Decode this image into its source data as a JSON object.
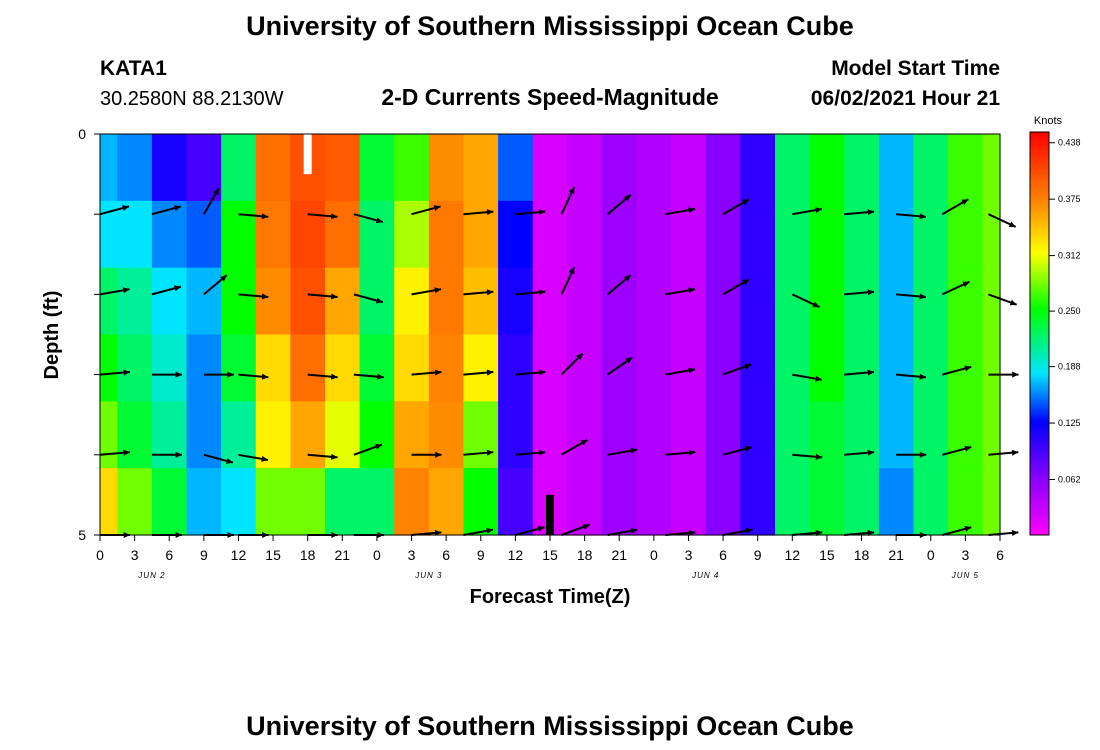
{
  "header": {
    "title": "University of Southern Mississippi Ocean Cube",
    "footer_title": "University of Southern Mississippi Ocean Cube",
    "station": "KATA1",
    "location": "30.2580N  88.2130W",
    "subtitle": "2-D Currents Speed-Magnitude",
    "model_start_label": "Model Start Time",
    "model_start_value": "06/02/2021 Hour 21"
  },
  "chart_data": {
    "type": "heatmap",
    "title": "2-D Currents Speed-Magnitude",
    "xlabel": "Forecast Time(Z)",
    "ylabel": "Depth (ft)",
    "x_tick_labels": [
      "0",
      "3",
      "6",
      "9",
      "12",
      "15",
      "18",
      "21",
      "0",
      "3",
      "6",
      "9",
      "12",
      "15",
      "18",
      "21",
      "0",
      "3",
      "6",
      "9",
      "12",
      "15",
      "18",
      "21",
      "0",
      "3",
      "6"
    ],
    "date_labels": [
      {
        "label": "JUN 2",
        "hour": 4.5
      },
      {
        "label": "JUN 3",
        "hour": 28.5
      },
      {
        "label": "JUN 4",
        "hour": 52.5
      },
      {
        "label": "JUN 5",
        "hour": 75
      }
    ],
    "xlim_hours": [
      0,
      78
    ],
    "ylim_ft": [
      0,
      5
    ],
    "y_tick_labels": [
      "0",
      "",
      "",
      "",
      "",
      "5"
    ],
    "depth_rows": 5,
    "colorbar": {
      "unit": "Knots",
      "min": 0.0,
      "max": 0.45,
      "ticks": [
        "0.438",
        "0.375",
        "0.312",
        "0.250",
        "0.188",
        "0.125",
        "0.062"
      ],
      "tick_values": [
        0.438,
        0.375,
        0.312,
        0.25,
        0.188,
        0.125,
        0.062
      ]
    },
    "speed_columns": [
      {
        "hour": 0,
        "speeds": [
          0.16,
          0.17,
          0.2,
          0.22,
          0.24,
          0.28
        ]
      },
      {
        "hour": 3,
        "speeds": [
          0.15,
          0.17,
          0.19,
          0.2,
          0.21,
          0.24
        ]
      },
      {
        "hour": 6,
        "speeds": [
          0.11,
          0.15,
          0.17,
          0.18,
          0.19,
          0.21
        ]
      },
      {
        "hour": 9,
        "speeds": [
          0.09,
          0.14,
          0.16,
          0.15,
          0.15,
          0.16
        ]
      },
      {
        "hour": 12,
        "speeds": [
          0.2,
          0.22,
          0.22,
          0.21,
          0.19,
          0.17
        ]
      },
      {
        "hour": 15,
        "speeds": [
          0.34,
          0.33,
          0.31,
          0.28,
          0.27,
          0.24
        ]
      },
      {
        "hour": 18,
        "speeds": [
          0.37,
          0.38,
          0.37,
          0.34,
          0.3,
          0.24
        ]
      },
      {
        "hour": 21,
        "speeds": [
          0.36,
          0.34,
          0.3,
          0.28,
          0.26,
          0.2
        ]
      },
      {
        "hour": 24,
        "speeds": [
          0.21,
          0.2,
          0.2,
          0.21,
          0.22,
          0.2
        ]
      },
      {
        "hour": 27,
        "speeds": [
          0.23,
          0.25,
          0.27,
          0.28,
          0.3,
          0.32
        ]
      },
      {
        "hour": 30,
        "speeds": [
          0.31,
          0.33,
          0.33,
          0.32,
          0.31,
          0.3
        ]
      },
      {
        "hour": 33,
        "speeds": [
          0.3,
          0.3,
          0.29,
          0.27,
          0.24,
          0.22
        ]
      },
      {
        "hour": 36,
        "speeds": [
          0.14,
          0.12,
          0.11,
          0.1,
          0.1,
          0.09
        ]
      },
      {
        "hour": 39,
        "speeds": [
          0.02,
          0.02,
          0.02,
          0.02,
          0.02,
          0.02
        ]
      },
      {
        "hour": 42,
        "speeds": [
          0.03,
          0.03,
          0.03,
          0.03,
          0.03,
          0.03
        ]
      },
      {
        "hour": 45,
        "speeds": [
          0.05,
          0.05,
          0.05,
          0.05,
          0.05,
          0.05
        ]
      },
      {
        "hour": 48,
        "speeds": [
          0.04,
          0.04,
          0.04,
          0.04,
          0.04,
          0.04
        ]
      },
      {
        "hour": 51,
        "speeds": [
          0.03,
          0.03,
          0.03,
          0.03,
          0.03,
          0.03
        ]
      },
      {
        "hour": 54,
        "speeds": [
          0.06,
          0.06,
          0.06,
          0.06,
          0.06,
          0.06
        ]
      },
      {
        "hour": 57,
        "speeds": [
          0.1,
          0.1,
          0.1,
          0.1,
          0.1,
          0.1
        ]
      },
      {
        "hour": 60,
        "speeds": [
          0.2,
          0.2,
          0.2,
          0.2,
          0.2,
          0.2
        ]
      },
      {
        "hour": 63,
        "speeds": [
          0.22,
          0.22,
          0.22,
          0.22,
          0.21,
          0.21
        ]
      },
      {
        "hour": 66,
        "speeds": [
          0.2,
          0.2,
          0.2,
          0.2,
          0.2,
          0.2
        ]
      },
      {
        "hour": 69,
        "speeds": [
          0.16,
          0.16,
          0.16,
          0.16,
          0.16,
          0.15
        ]
      },
      {
        "hour": 72,
        "speeds": [
          0.2,
          0.2,
          0.2,
          0.2,
          0.2,
          0.2
        ]
      },
      {
        "hour": 75,
        "speeds": [
          0.23,
          0.23,
          0.23,
          0.23,
          0.23,
          0.23
        ]
      },
      {
        "hour": 78,
        "speeds": [
          0.24,
          0.24,
          0.24,
          0.24,
          0.24,
          0.24
        ]
      }
    ],
    "vector_hours": [
      0,
      4.5,
      9,
      12,
      18,
      22,
      27,
      31.5,
      36,
      40,
      44,
      49,
      54,
      60,
      64.5,
      69,
      73,
      77
    ],
    "vector_depth_rows": [
      1,
      2,
      3,
      4,
      5
    ],
    "vector_directions_deg": [
      [
        15,
        15,
        60,
        -5,
        -5,
        -15,
        15,
        5,
        5,
        65,
        40,
        10,
        30,
        10,
        5,
        -5,
        30,
        -25
      ],
      [
        10,
        15,
        40,
        -5,
        -5,
        -15,
        10,
        5,
        5,
        65,
        40,
        10,
        30,
        -25,
        5,
        -5,
        25,
        -20
      ],
      [
        5,
        0,
        0,
        -5,
        -5,
        -5,
        5,
        5,
        5,
        45,
        35,
        10,
        20,
        -10,
        5,
        -5,
        15,
        0
      ],
      [
        5,
        0,
        -15,
        -10,
        -5,
        20,
        0,
        5,
        5,
        30,
        10,
        5,
        15,
        -5,
        5,
        0,
        15,
        5
      ],
      [
        0,
        0,
        0,
        0,
        0,
        0,
        5,
        10,
        15,
        20,
        10,
        5,
        10,
        5,
        5,
        0,
        15,
        5
      ]
    ],
    "bars": [
      {
        "hour": 18,
        "from_ft": 0,
        "to_ft": 0.5,
        "color": "#ffffff"
      },
      {
        "hour": 39,
        "from_ft": 4.5,
        "to_ft": 5,
        "color": "#000000"
      }
    ]
  }
}
